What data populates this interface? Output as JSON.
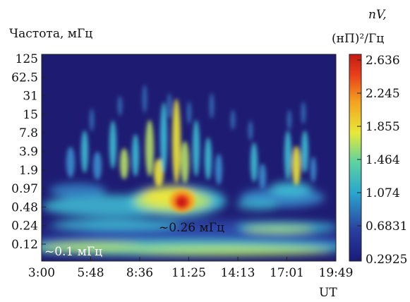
{
  "chart_data": {
    "type": "heatmap",
    "ylabel": "Частота, мГц",
    "xlabel": "UT",
    "y_ticks": [
      "125",
      "62.5",
      "31",
      "15",
      "7.8",
      "3.9",
      "1.9",
      "0.97",
      "0.48",
      "0.24",
      "0.12"
    ],
    "x_ticks": [
      "3:00",
      "5:48",
      "8:36",
      "11:25",
      "14:13",
      "17:01",
      "19:49"
    ],
    "y_scale": "log2",
    "colorbar": {
      "title_line1": "nV,",
      "title_line2": "(нП)²/Гц",
      "ticks": [
        "2.636",
        "2.245",
        "1.855",
        "1.464",
        "1.074",
        "0.6831",
        "0.2925"
      ],
      "range": [
        0.2925,
        2.636
      ]
    },
    "annotations": [
      {
        "text": "~0.26 мГц",
        "x": "11:00",
        "y": 0.26
      },
      {
        "text": "~0.1 мГц",
        "x": "3:40",
        "y": 0.1
      }
    ],
    "features": [
      {
        "x_time": "11:05",
        "y_freq": 0.55,
        "intensity": 2.6
      },
      {
        "x_time": "10:15",
        "y_freq": 0.3,
        "intensity": 1.9
      },
      {
        "x_time": "6:30",
        "y_freq": 0.2,
        "intensity": 1.7
      },
      {
        "x_time": "15:40",
        "y_freq": 0.2,
        "intensity": 1.7
      },
      {
        "x_time": "18:40",
        "y_freq": 0.28,
        "intensity": 1.6
      },
      {
        "x_time": "18:20",
        "y_freq": 1.5,
        "intensity": 1.9
      },
      {
        "x_time": "9:50",
        "y_freq": 3.5,
        "intensity": 1.7
      },
      {
        "x_time": "12:30",
        "y_freq": 0.9,
        "intensity": 1.6
      }
    ]
  }
}
